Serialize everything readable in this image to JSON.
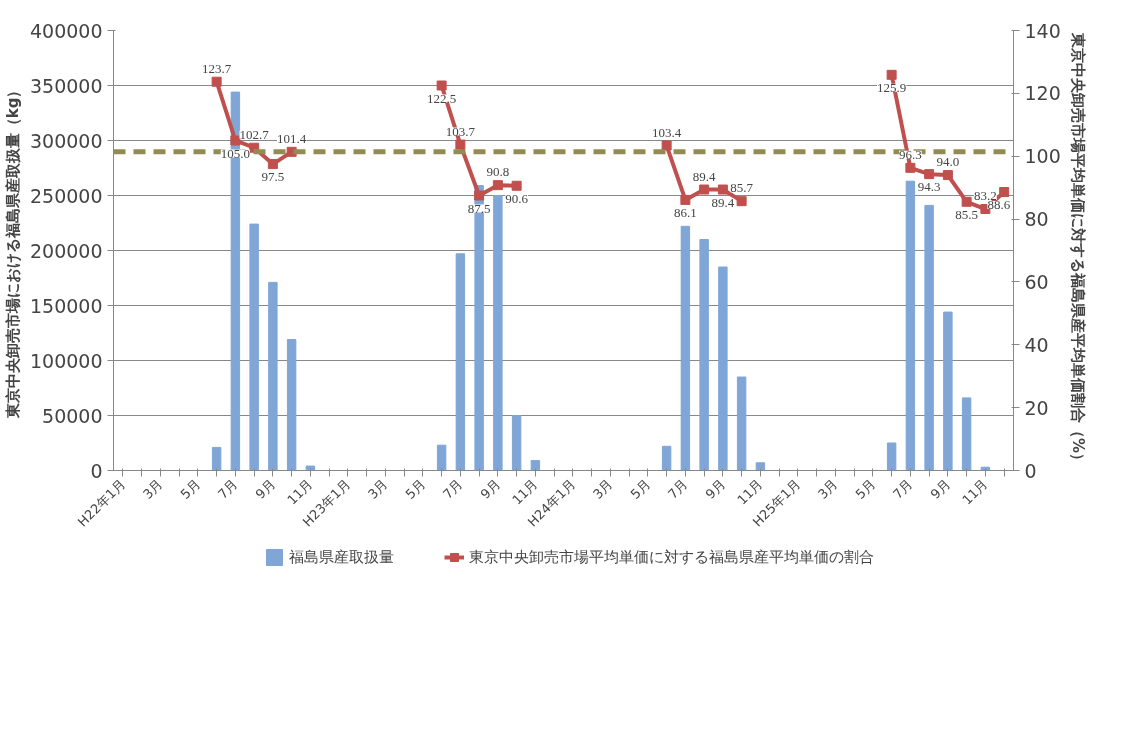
{
  "chart_data": {
    "type": "bar",
    "categories": [
      "H22年1月",
      null,
      "3月",
      null,
      "5月",
      null,
      "7月",
      null,
      "9月",
      null,
      "11月",
      null,
      "H23年1月",
      null,
      "3月",
      null,
      "5月",
      null,
      "7月",
      null,
      "9月",
      null,
      "11月",
      null,
      "H24年1月",
      null,
      "3月",
      null,
      "5月",
      null,
      "7月",
      null,
      "9月",
      null,
      "11月",
      null,
      "H25年1月",
      null,
      "3月",
      null,
      "5月",
      null,
      "7月",
      null,
      "9月",
      null,
      "11月",
      null
    ],
    "series": [
      {
        "name": "福島県産取扱量",
        "color": "#7fa6d6",
        "values": [
          null,
          null,
          null,
          null,
          null,
          21000,
          344000,
          224000,
          171000,
          119000,
          4000,
          null,
          null,
          null,
          null,
          null,
          null,
          23000,
          197000,
          259000,
          250000,
          50000,
          9000,
          null,
          null,
          null,
          null,
          null,
          null,
          22000,
          222000,
          210000,
          185000,
          85000,
          7000,
          null,
          null,
          null,
          null,
          null,
          null,
          25000,
          263000,
          241000,
          144000,
          66000,
          3000,
          null
        ]
      },
      {
        "name": "東京中央卸売市場平均単価に対する福島県産平均単価の割合",
        "type": "line",
        "axis": "y2",
        "color": "#c0504d",
        "marker": "square",
        "values": [
          null,
          null,
          null,
          null,
          null,
          123.7,
          105.0,
          102.7,
          97.5,
          101.4,
          null,
          null,
          null,
          null,
          null,
          null,
          null,
          122.5,
          103.7,
          87.5,
          90.8,
          90.6,
          null,
          null,
          null,
          null,
          null,
          null,
          null,
          103.4,
          86.1,
          89.4,
          89.4,
          85.7,
          null,
          null,
          null,
          null,
          null,
          null,
          null,
          125.9,
          96.3,
          94.3,
          94.0,
          85.5,
          83.2,
          88.6
        ],
        "value_labels": [
          null,
          null,
          null,
          null,
          null,
          "123.7",
          "105.0",
          "102.7",
          "97.5",
          "101.4",
          null,
          null,
          null,
          null,
          null,
          null,
          null,
          "122.5",
          "103.7",
          "87.5",
          "90.8",
          "90.6",
          null,
          null,
          null,
          null,
          null,
          null,
          null,
          "103.4",
          "86.1",
          "89.4",
          "89.4",
          "85.7",
          null,
          null,
          null,
          null,
          null,
          null,
          null,
          "125.9",
          "96.3",
          "94.3",
          "94.0",
          "85.5",
          "83.2",
          "88.6"
        ]
      }
    ],
    "ylabel": "東京中央卸売市場における福島県産取扱量（kg）",
    "y2label": "東京中央卸売市場平均単価に対する福島県産平均単価割合（%）",
    "ylim": [
      0,
      400000
    ],
    "yticks": [
      0,
      50000,
      100000,
      150000,
      200000,
      250000,
      300000,
      350000,
      400000
    ],
    "y2lim": [
      0,
      140
    ],
    "y2ticks": [
      0,
      20,
      40,
      60,
      80,
      100,
      120,
      140
    ],
    "ref_lines": [
      {
        "axis": "y2",
        "value": 101.4,
        "color": "#948a54",
        "line_style": "dashed"
      }
    ],
    "grid": "y",
    "legend": "bottom"
  }
}
